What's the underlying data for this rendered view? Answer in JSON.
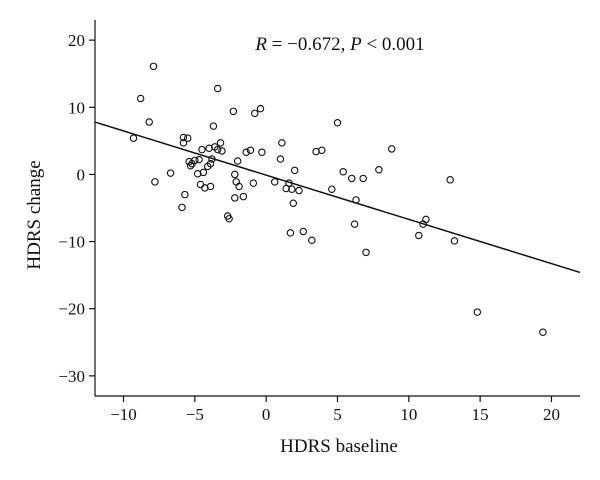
{
  "chart_data": {
    "type": "scatter",
    "title": "",
    "xlabel": "HDRS baseline",
    "ylabel": "HDRS change",
    "xlim": [
      -12,
      22
    ],
    "ylim": [
      -33,
      23
    ],
    "xticks": [
      -10,
      -5,
      0,
      5,
      10,
      15,
      20
    ],
    "yticks": [
      20,
      10,
      0,
      -10,
      -20,
      -30
    ],
    "grid": false,
    "annotation": {
      "r_label": "R",
      "r_text": " = −0.672, ",
      "p_label": "P",
      "p_text": " < 0.001"
    },
    "fit_line": {
      "x": [
        -12,
        22
      ],
      "y": [
        7.8,
        -14.6
      ]
    },
    "points": [
      [
        -9.3,
        5.4
      ],
      [
        -8.8,
        11.3
      ],
      [
        -8.2,
        7.8
      ],
      [
        -7.9,
        16.1
      ],
      [
        -7.8,
        -1.1
      ],
      [
        -6.7,
        0.2
      ],
      [
        -5.9,
        -4.9
      ],
      [
        -5.8,
        4.7
      ],
      [
        -5.8,
        5.5
      ],
      [
        -5.7,
        -3.0
      ],
      [
        -5.5,
        5.4
      ],
      [
        -5.4,
        1.9
      ],
      [
        -5.3,
        1.3
      ],
      [
        -5.2,
        1.6
      ],
      [
        -5.0,
        2.1
      ],
      [
        -4.8,
        0.1
      ],
      [
        -4.7,
        2.2
      ],
      [
        -4.6,
        -1.5
      ],
      [
        -4.5,
        3.7
      ],
      [
        -4.4,
        0.3
      ],
      [
        -4.3,
        -2.0
      ],
      [
        -4.1,
        1.2
      ],
      [
        -4.0,
        3.9
      ],
      [
        -3.9,
        -1.8
      ],
      [
        -3.9,
        1.6
      ],
      [
        -3.8,
        2.3
      ],
      [
        -3.7,
        7.2
      ],
      [
        -3.6,
        4.1
      ],
      [
        -3.4,
        12.8
      ],
      [
        -3.4,
        3.7
      ],
      [
        -3.2,
        4.7
      ],
      [
        -3.1,
        3.5
      ],
      [
        -2.7,
        -6.2
      ],
      [
        -2.6,
        -6.6
      ],
      [
        -2.3,
        9.4
      ],
      [
        -2.2,
        0.0
      ],
      [
        -2.2,
        -3.5
      ],
      [
        -2.1,
        -1.1
      ],
      [
        -2.0,
        2.0
      ],
      [
        -1.9,
        -1.8
      ],
      [
        -1.6,
        -3.3
      ],
      [
        -1.4,
        3.3
      ],
      [
        -1.1,
        3.6
      ],
      [
        -0.9,
        -1.3
      ],
      [
        -0.8,
        9.1
      ],
      [
        -0.4,
        9.8
      ],
      [
        -0.3,
        3.3
      ],
      [
        0.6,
        -1.1
      ],
      [
        1.0,
        2.3
      ],
      [
        1.1,
        4.7
      ],
      [
        1.4,
        -2.1
      ],
      [
        1.6,
        -1.3
      ],
      [
        1.7,
        -8.7
      ],
      [
        1.8,
        -2.2
      ],
      [
        1.9,
        -4.3
      ],
      [
        2.0,
        0.6
      ],
      [
        2.3,
        -2.4
      ],
      [
        2.6,
        -8.5
      ],
      [
        3.2,
        -9.8
      ],
      [
        3.5,
        3.4
      ],
      [
        3.9,
        3.6
      ],
      [
        4.6,
        -2.2
      ],
      [
        5.0,
        7.7
      ],
      [
        5.4,
        0.4
      ],
      [
        6.0,
        -0.6
      ],
      [
        6.2,
        -7.4
      ],
      [
        6.3,
        -3.8
      ],
      [
        6.8,
        -0.6
      ],
      [
        7.0,
        -11.6
      ],
      [
        7.9,
        0.7
      ],
      [
        8.8,
        3.8
      ],
      [
        10.7,
        -9.1
      ],
      [
        11.0,
        -7.4
      ],
      [
        11.2,
        -6.7
      ],
      [
        12.9,
        -0.8
      ],
      [
        13.2,
        -9.9
      ],
      [
        14.8,
        -20.5
      ],
      [
        19.4,
        -23.5
      ]
    ]
  }
}
